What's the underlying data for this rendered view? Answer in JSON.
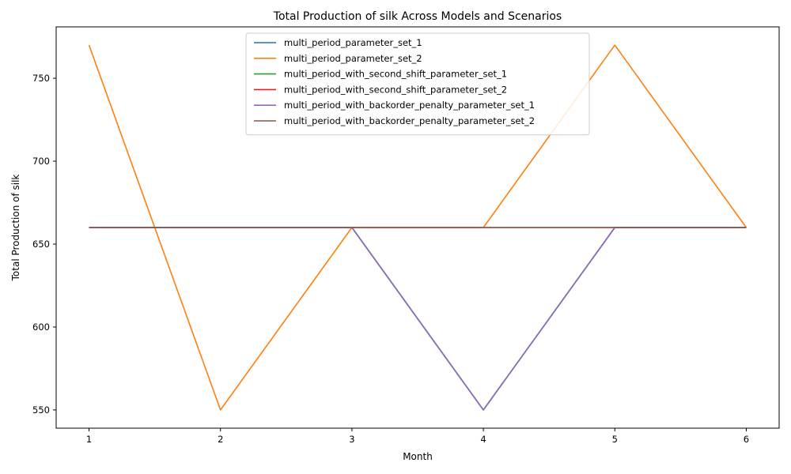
{
  "chart_data": {
    "type": "line",
    "title": "Total Production of silk Across Models and Scenarios",
    "xlabel": "Month",
    "ylabel": "Total Production of silk",
    "x": [
      1,
      2,
      3,
      4,
      5,
      6
    ],
    "x_ticks": [
      "1",
      "2",
      "3",
      "4",
      "5",
      "6"
    ],
    "y_ticks": [
      "550",
      "600",
      "650",
      "700",
      "750"
    ],
    "xlim": [
      0.75,
      6.25
    ],
    "ylim": [
      539,
      781
    ],
    "grid": false,
    "legend_position": "top-center",
    "series": [
      {
        "name": "multi_period_parameter_set_1",
        "color": "#1f77b4",
        "values": [
          660,
          660,
          660,
          550,
          660,
          660
        ]
      },
      {
        "name": "multi_period_parameter_set_2",
        "color": "#ff7f0e",
        "values": [
          770,
          550,
          660,
          660,
          770,
          660
        ]
      },
      {
        "name": "multi_period_with_second_shift_parameter_set_1",
        "color": "#2ca02c",
        "values": [
          660,
          660,
          660,
          550,
          660,
          660
        ]
      },
      {
        "name": "multi_period_with_second_shift_parameter_set_2",
        "color": "#d62728",
        "values": [
          660,
          660,
          660,
          660,
          660,
          660
        ]
      },
      {
        "name": "multi_period_with_backorder_penalty_parameter_set_1",
        "color": "#9467bd",
        "values": [
          660,
          660,
          660,
          550,
          660,
          660
        ]
      },
      {
        "name": "multi_period_with_backorder_penalty_parameter_set_2",
        "color": "#8c564b",
        "values": [
          660,
          660,
          660,
          660,
          660,
          660
        ]
      }
    ]
  }
}
